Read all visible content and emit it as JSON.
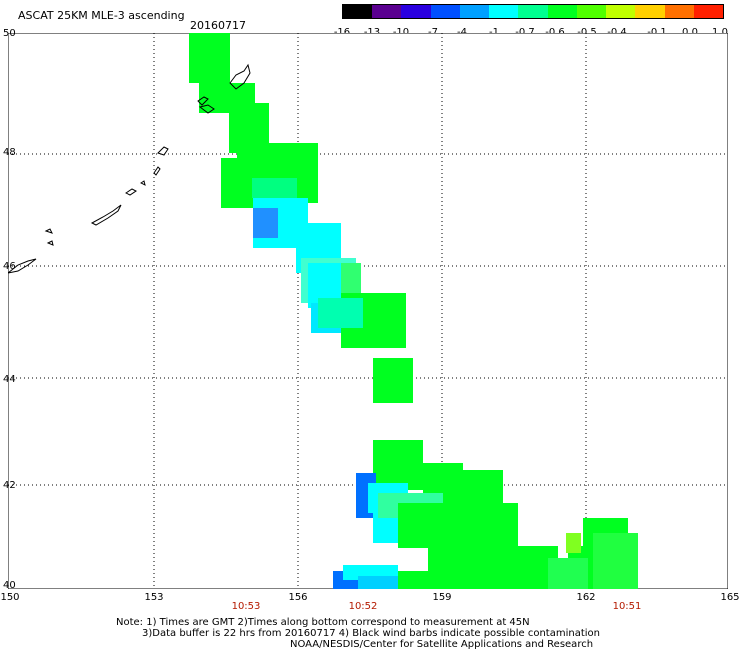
{
  "header": {
    "title": "ASCAT 25KM MLE-3 ascending",
    "date": "20160717"
  },
  "colorbar": {
    "labels": [
      "-16",
      "-13",
      "-10",
      "-7",
      "-4",
      "-1",
      "-0.7",
      "-0.6",
      "-0.5",
      "-0.4",
      "-0.1",
      "0.0",
      "1.0"
    ],
    "colors": [
      "#000000",
      "#5a0090",
      "#2a00e0",
      "#0050ff",
      "#00a0ff",
      "#00ffff",
      "#00ff90",
      "#00ff20",
      "#50ff00",
      "#c0ff00",
      "#ffd000",
      "#ff7000",
      "#ff2000"
    ]
  },
  "axes": {
    "x_ticks": [
      "150",
      "153",
      "156",
      "159",
      "162",
      "165"
    ],
    "y_ticks": [
      "50",
      "48",
      "46",
      "44",
      "42",
      "40"
    ],
    "times": [
      "10:53",
      "10:52",
      "10:51"
    ]
  },
  "notes": {
    "line1": "Note: 1) Times are GMT 2)Times along bottom correspond to measurement at 45N",
    "line2": "3)Data buffer is 22 hrs from 20160717 4) Black wind barbs indicate possible contamination",
    "line3": "NOAA/NESDIS/Center for Satellite Applications and Research"
  },
  "colors": {
    "green": "#00ff20",
    "cyan": "#00ffff",
    "blue": "#0070ff",
    "time": "#b41a00"
  }
}
